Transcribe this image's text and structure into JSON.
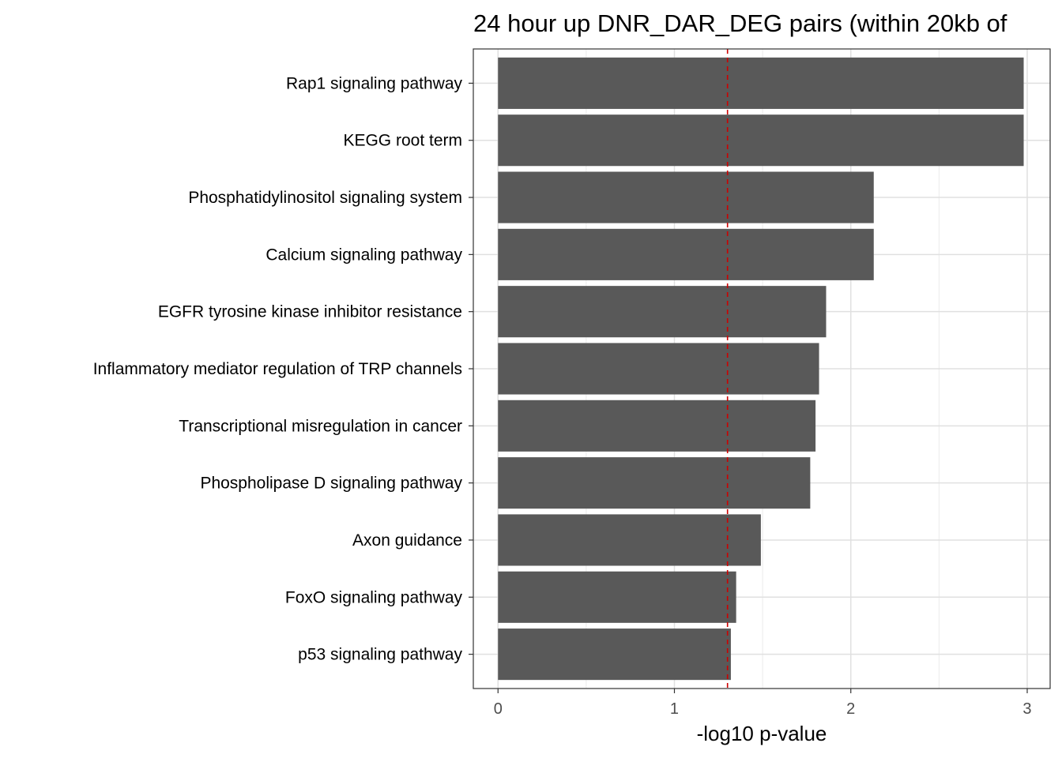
{
  "chart_data": {
    "type": "bar",
    "orientation": "horizontal",
    "title": "24 hour up DNR_DAR_DEG pairs (within 20kb of",
    "xlabel": "-log10 p-value",
    "ylabel": "",
    "categories": [
      "Rap1 signaling pathway",
      "KEGG root term",
      "Phosphatidylinositol signaling system",
      "Calcium signaling pathway",
      "EGFR tyrosine kinase inhibitor resistance",
      "Inflammatory mediator regulation of TRP channels",
      "Transcriptional misregulation in cancer",
      "Phospholipase D signaling pathway",
      "Axon guidance",
      "FoxO signaling pathway",
      "p53 signaling pathway"
    ],
    "values": [
      2.98,
      2.98,
      2.13,
      2.13,
      1.86,
      1.82,
      1.8,
      1.77,
      1.49,
      1.35,
      1.32
    ],
    "xlim": [
      -0.14,
      3.13
    ],
    "x_ticks": [
      "0",
      "1",
      "2",
      "3"
    ],
    "x_tick_values": [
      0,
      1,
      2,
      3
    ],
    "reference_line": {
      "value": 1.301,
      "style": "dashed",
      "color": "#cc0000"
    },
    "bar_color": "#595959",
    "grid": true,
    "legend": "none"
  }
}
